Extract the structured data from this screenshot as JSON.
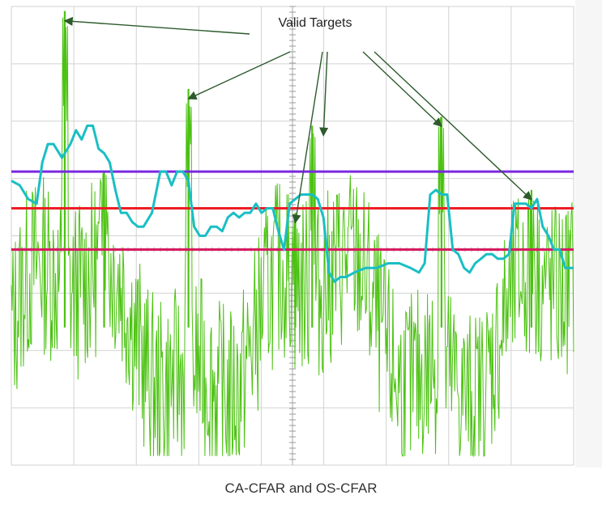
{
  "caption": "CA-CFAR and OS-CFAR",
  "chart_data": {
    "type": "line",
    "title": "",
    "xlabel": "",
    "ylabel": "",
    "xlim": [
      0,
      100
    ],
    "ylim": [
      0,
      100
    ],
    "grid": true,
    "annotation": {
      "text": "Valid Targets",
      "targets_x": [
        9.5,
        31.5,
        50.5,
        55.5,
        76.5,
        92.5
      ]
    },
    "thresholds": [
      {
        "name": "",
        "color": "#7a28e0",
        "y": 64
      },
      {
        "name": "",
        "color": "#ee1c24",
        "y": 56
      },
      {
        "name": "",
        "color": "#d81b60",
        "y": 47
      }
    ],
    "os_cfar": {
      "color": "#19bfc4",
      "x": [
        0,
        1.5,
        3,
        4.5,
        5.5,
        6.5,
        7.5,
        9,
        10.5,
        11.5,
        12.5,
        13.5,
        14.5,
        15.5,
        16.5,
        17.5,
        18.5,
        19.5,
        20.5,
        21.5,
        22.5,
        23.5,
        25,
        26.5,
        27.5,
        28.5,
        29.5,
        30.5,
        31.5,
        32.5,
        33.5,
        34.5,
        35.5,
        36.5,
        37.5,
        38.5,
        39.5,
        40.5,
        41.5,
        42.5,
        43.5,
        44.5,
        45.5,
        46.5,
        47.5,
        48.5,
        49.5,
        50.5,
        51.5,
        52.5,
        53.5,
        54.5,
        55.5,
        56.5,
        57.5,
        58.5,
        59.5,
        61,
        63,
        65,
        67,
        69,
        71,
        72.5,
        73.5,
        74.5,
        75.5,
        76.5,
        77.5,
        78.5,
        79.5,
        80.5,
        81.5,
        82.5,
        83.5,
        84.5,
        85.5,
        86.5,
        87.5,
        88.5,
        89.5,
        90.5,
        91.5,
        92.5,
        93.5,
        94.5,
        95.5,
        96.5,
        97.5,
        98.5,
        100
      ],
      "y": [
        62,
        61,
        58,
        57,
        66,
        70,
        70,
        67,
        70,
        73,
        71,
        74,
        74,
        69,
        68,
        66,
        60,
        55,
        55,
        53,
        52,
        52,
        55,
        64,
        64,
        61,
        64,
        64,
        62,
        52,
        50,
        50,
        52,
        52,
        51,
        54,
        55,
        54,
        55,
        55,
        57,
        55,
        56,
        56,
        51,
        47,
        57,
        58,
        59,
        59,
        59,
        58,
        54,
        42,
        40,
        41,
        41,
        42,
        43,
        43,
        44,
        44,
        43,
        42,
        44,
        59,
        60,
        59,
        59,
        47,
        46,
        43,
        42,
        44,
        45,
        46,
        46,
        45,
        45,
        46,
        57,
        57,
        57,
        56,
        58,
        52,
        50,
        47,
        47,
        43,
        43
      ]
    },
    "signal": {
      "color": "#4cc212",
      "noise_floor": 30,
      "spikes": [
        {
          "x": 9.5,
          "y": 99
        },
        {
          "x": 16.5,
          "y": 64
        },
        {
          "x": 31.5,
          "y": 82
        },
        {
          "x": 50.5,
          "y": 55
        },
        {
          "x": 53.5,
          "y": 74
        },
        {
          "x": 76.5,
          "y": 76
        },
        {
          "x": 92.5,
          "y": 60
        }
      ]
    }
  }
}
